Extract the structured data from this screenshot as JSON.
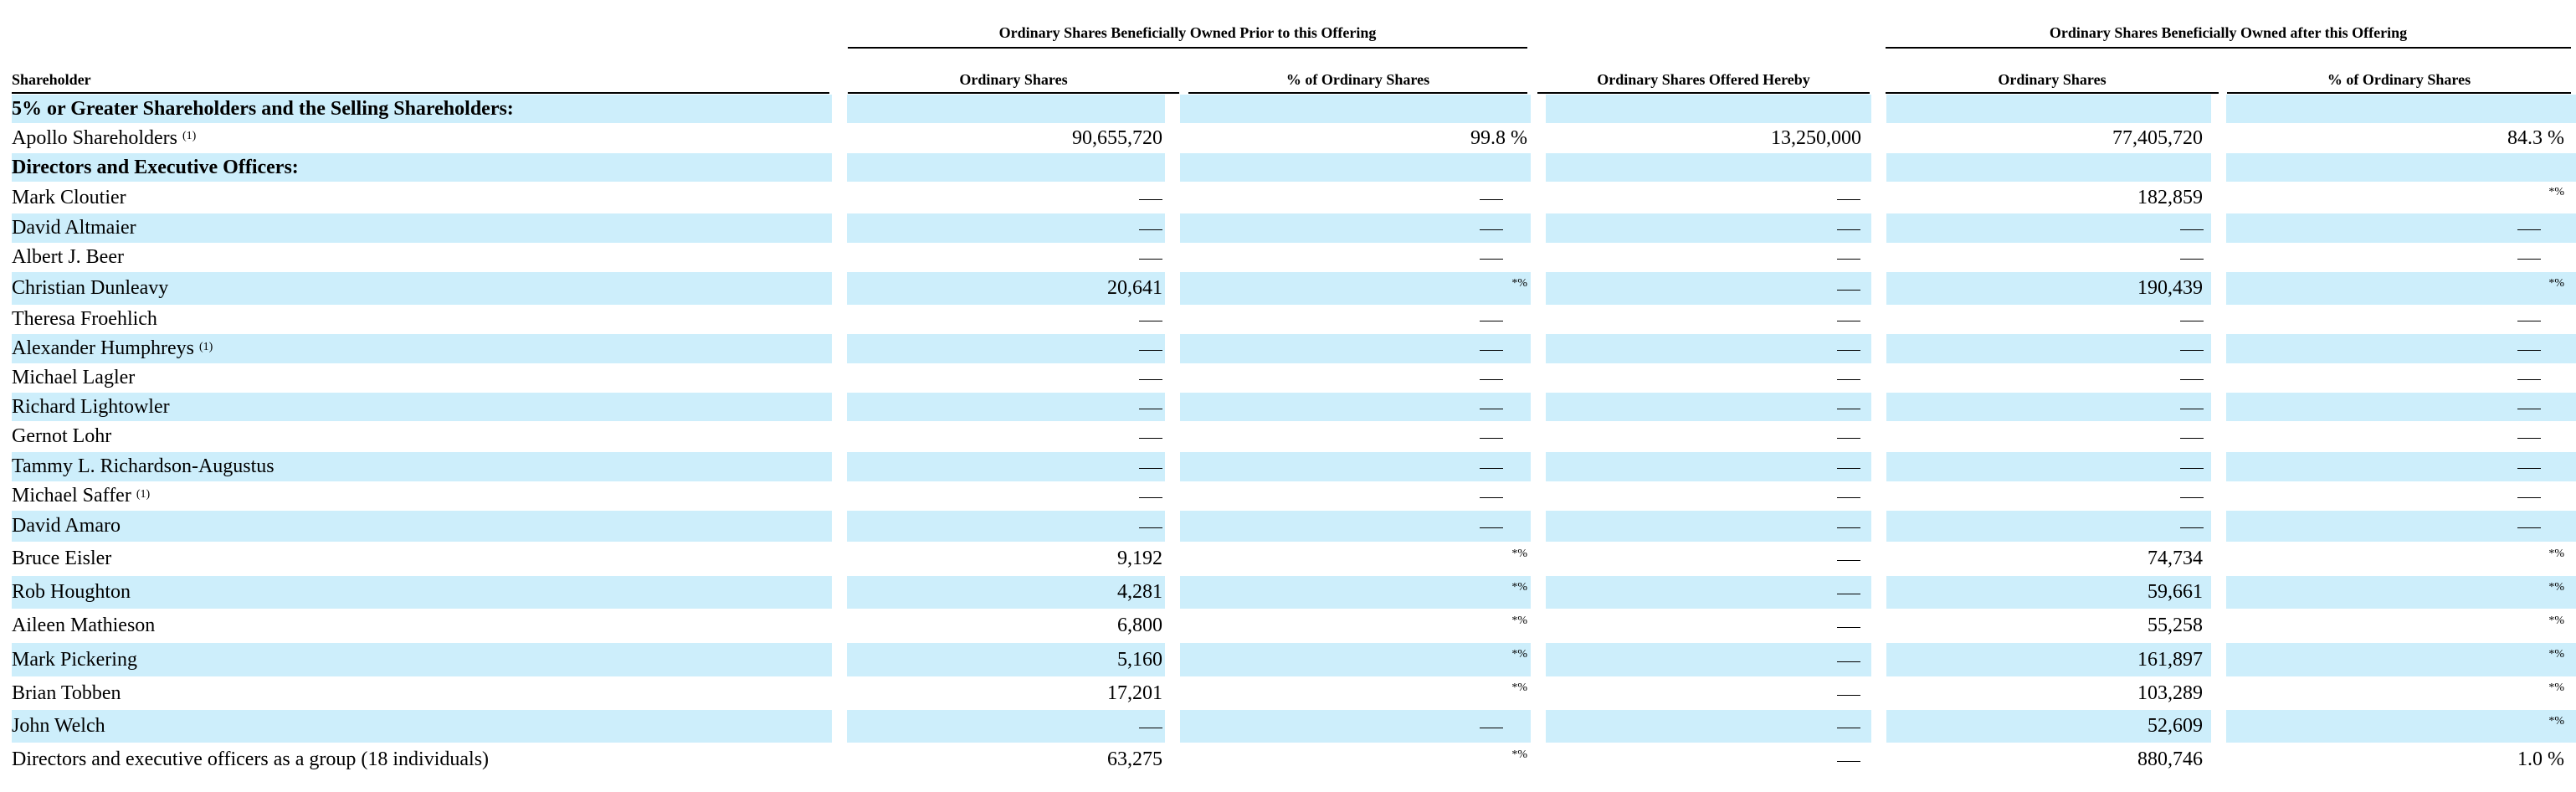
{
  "headers": {
    "group_prior": "Ordinary Shares Beneficially Owned Prior to this Offering",
    "group_after": "Ordinary Shares Beneficially Owned after this Offering",
    "shareholder": "Shareholder",
    "prior_shares": "Ordinary Shares",
    "prior_pct": "% of Ordinary Shares",
    "offered": "Ordinary Shares Offered Hereby",
    "after_shares": "Ordinary Shares",
    "after_pct": "% of Ordinary Shares"
  },
  "rows": [
    {
      "type": "section",
      "name": "5% or Greater Shareholders and the Selling Shareholders:"
    },
    {
      "type": "data",
      "name": "Apollo Shareholders",
      "note": "(1)",
      "prior_shares": "90,655,720",
      "prior_pct": "99.8 %",
      "offered": "13,250,000",
      "after_shares": "77,405,720",
      "after_pct": "84.3 %"
    },
    {
      "type": "section",
      "name": "Directors and Executive Officers:"
    },
    {
      "type": "data",
      "name": "Mark Cloutier",
      "note": "",
      "prior_shares": "—",
      "prior_pct": "—",
      "offered": "—",
      "after_shares": "182,859",
      "after_pct": "*%"
    },
    {
      "type": "data",
      "name": "David Altmaier",
      "note": "",
      "prior_shares": "—",
      "prior_pct": "—",
      "offered": "—",
      "after_shares": "—",
      "after_pct": "—"
    },
    {
      "type": "data",
      "name": "Albert J. Beer",
      "note": "",
      "prior_shares": "—",
      "prior_pct": "—",
      "offered": "—",
      "after_shares": "—",
      "after_pct": "—"
    },
    {
      "type": "data",
      "name": "Christian Dunleavy",
      "note": "",
      "prior_shares": "20,641",
      "prior_pct": "*%",
      "offered": "—",
      "after_shares": "190,439",
      "after_pct": "*%"
    },
    {
      "type": "data",
      "name": "Theresa Froehlich",
      "note": "",
      "prior_shares": "—",
      "prior_pct": "—",
      "offered": "—",
      "after_shares": "—",
      "after_pct": "—"
    },
    {
      "type": "data",
      "name": "Alexander Humphreys",
      "note": "(1)",
      "prior_shares": "—",
      "prior_pct": "—",
      "offered": "—",
      "after_shares": "—",
      "after_pct": "—"
    },
    {
      "type": "data",
      "name": "Michael Lagler",
      "note": "",
      "prior_shares": "—",
      "prior_pct": "—",
      "offered": "—",
      "after_shares": "—",
      "after_pct": "—"
    },
    {
      "type": "data",
      "name": "Richard Lightowler",
      "note": "",
      "prior_shares": "—",
      "prior_pct": "—",
      "offered": "—",
      "after_shares": "—",
      "after_pct": "—"
    },
    {
      "type": "data",
      "name": "Gernot Lohr",
      "note": "",
      "prior_shares": "—",
      "prior_pct": "—",
      "offered": "—",
      "after_shares": "—",
      "after_pct": "—"
    },
    {
      "type": "data",
      "name": "Tammy L. Richardson-Augustus",
      "note": "",
      "prior_shares": "—",
      "prior_pct": "—",
      "offered": "—",
      "after_shares": "—",
      "after_pct": "—"
    },
    {
      "type": "data",
      "name": "Michael Saffer",
      "note": "(1)",
      "prior_shares": "—",
      "prior_pct": "—",
      "offered": "—",
      "after_shares": "—",
      "after_pct": "—"
    },
    {
      "type": "data",
      "name": "David Amaro",
      "note": "",
      "prior_shares": "—",
      "prior_pct": "—",
      "offered": "—",
      "after_shares": "—",
      "after_pct": "—"
    },
    {
      "type": "data",
      "name": "Bruce Eisler",
      "note": "",
      "prior_shares": "9,192",
      "prior_pct": "*%",
      "offered": "—",
      "after_shares": "74,734",
      "after_pct": "*%"
    },
    {
      "type": "data",
      "name": "Rob Houghton",
      "note": "",
      "prior_shares": "4,281",
      "prior_pct": "*%",
      "offered": "—",
      "after_shares": "59,661",
      "after_pct": "*%"
    },
    {
      "type": "data",
      "name": "Aileen Mathieson",
      "note": "",
      "prior_shares": "6,800",
      "prior_pct": "*%",
      "offered": "—",
      "after_shares": "55,258",
      "after_pct": "*%"
    },
    {
      "type": "data",
      "name": "Mark Pickering",
      "note": "",
      "prior_shares": "5,160",
      "prior_pct": "*%",
      "offered": "—",
      "after_shares": "161,897",
      "after_pct": "*%"
    },
    {
      "type": "data",
      "name": "Brian Tobben",
      "note": "",
      "prior_shares": "17,201",
      "prior_pct": "*%",
      "offered": "—",
      "after_shares": "103,289",
      "after_pct": "*%"
    },
    {
      "type": "data",
      "name": "John Welch",
      "note": "",
      "prior_shares": "—",
      "prior_pct": "—",
      "offered": "—",
      "after_shares": "52,609",
      "after_pct": "*%"
    },
    {
      "type": "data",
      "name": "Directors and executive officers as a group (18 individuals)",
      "note": "",
      "prior_shares": "63,275",
      "prior_pct": "*%",
      "offered": "—",
      "after_shares": "880,746",
      "after_pct": "1.0 %"
    }
  ]
}
